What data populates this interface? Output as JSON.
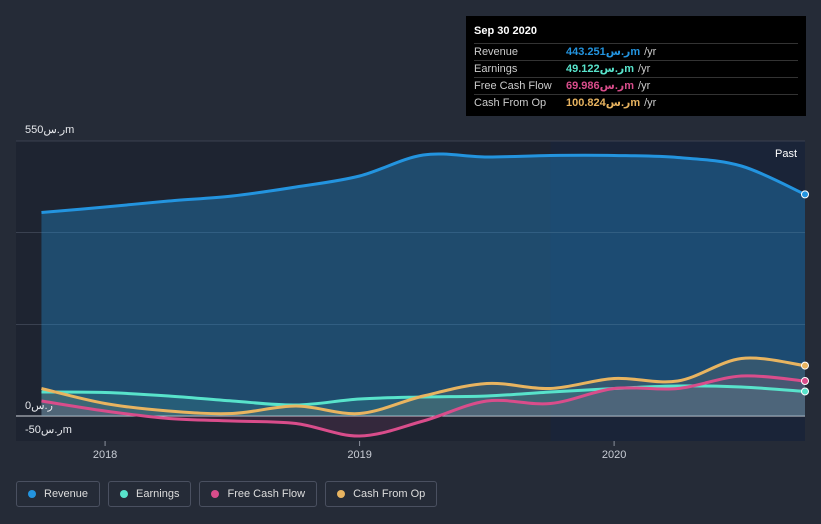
{
  "chart_data": {
    "type": "area",
    "title": "",
    "xlabel": "",
    "ylabel": "",
    "ylim": [
      -50,
      550
    ],
    "y_ticks": [
      {
        "value": 550,
        "label": "550ر.سm"
      },
      {
        "value": 0,
        "label": "0ر.س"
      },
      {
        "value": -50,
        "label": "-50ر.سm"
      }
    ],
    "x_ticks": [
      {
        "value": 2018.0,
        "label": "2018"
      },
      {
        "value": 2019.0,
        "label": "2019"
      },
      {
        "value": 2020.0,
        "label": "2020"
      }
    ],
    "past_label": "Past",
    "past_start": 2019.75,
    "x_range": [
      2017.65,
      2020.75
    ],
    "series": [
      {
        "name": "Revenue",
        "color": "#2394df",
        "x": [
          2017.75,
          2018.0,
          2018.25,
          2018.5,
          2018.75,
          2019.0,
          2019.25,
          2019.5,
          2019.75,
          2020.0,
          2020.25,
          2020.5,
          2020.75
        ],
        "values": [
          407,
          418,
          430,
          440,
          458,
          480,
          522,
          518,
          521,
          521,
          517,
          500,
          443.251
        ]
      },
      {
        "name": "Earnings",
        "color": "#58e3cb",
        "x": [
          2017.75,
          2018.0,
          2018.25,
          2018.5,
          2018.75,
          2019.0,
          2019.25,
          2019.5,
          2019.75,
          2020.0,
          2020.25,
          2020.5,
          2020.75
        ],
        "values": [
          48,
          47,
          40,
          30,
          22,
          34,
          38,
          40,
          48,
          55,
          60,
          58,
          49.122
        ]
      },
      {
        "name": "Free Cash Flow",
        "color": "#d94d8b",
        "x": [
          2017.75,
          2018.0,
          2018.25,
          2018.5,
          2018.75,
          2019.0,
          2019.25,
          2019.5,
          2019.75,
          2020.0,
          2020.25,
          2020.5,
          2020.75
        ],
        "values": [
          30,
          10,
          -5,
          -10,
          -15,
          -40,
          -10,
          30,
          25,
          55,
          55,
          80,
          69.986
        ]
      },
      {
        "name": "Cash From Op",
        "color": "#e8b460",
        "x": [
          2017.75,
          2018.0,
          2018.25,
          2018.5,
          2018.75,
          2019.0,
          2019.25,
          2019.5,
          2019.75,
          2020.0,
          2020.25,
          2020.5,
          2020.75
        ],
        "values": [
          55,
          25,
          10,
          5,
          20,
          5,
          40,
          65,
          55,
          75,
          70,
          115,
          100.824
        ]
      }
    ]
  },
  "tooltip": {
    "date": "Sep 30 2020",
    "unit": "/yr",
    "rows": [
      {
        "label": "Revenue",
        "value": "443.251ر.سm",
        "color": "#2394df"
      },
      {
        "label": "Earnings",
        "value": "49.122ر.سm",
        "color": "#58e3cb"
      },
      {
        "label": "Free Cash Flow",
        "value": "69.986ر.سm",
        "color": "#d94d8b"
      },
      {
        "label": "Cash From Op",
        "value": "100.824ر.سm",
        "color": "#e8b460"
      }
    ]
  },
  "legend": [
    {
      "label": "Revenue",
      "color": "#2394df"
    },
    {
      "label": "Earnings",
      "color": "#58e3cb"
    },
    {
      "label": "Free Cash Flow",
      "color": "#d94d8b"
    },
    {
      "label": "Cash From Op",
      "color": "#e8b460"
    }
  ]
}
